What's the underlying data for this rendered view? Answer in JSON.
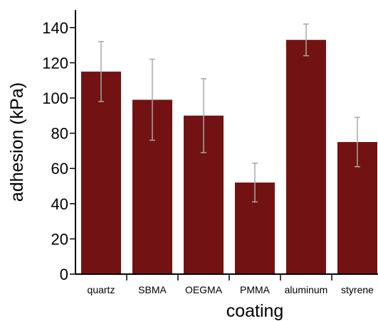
{
  "chart_data": {
    "type": "bar",
    "title": "",
    "xlabel": "coating",
    "ylabel": "adhesion (kPa)",
    "categories": [
      "quartz",
      "SBMA",
      "OEGMA",
      "PMMA",
      "aluminum",
      "styrene"
    ],
    "values": [
      115,
      99,
      90,
      52,
      133,
      75
    ],
    "error_low": [
      98,
      76,
      69,
      41,
      124,
      61
    ],
    "error_high": [
      132,
      122,
      111,
      63,
      142,
      89
    ],
    "ylim": [
      0,
      150
    ],
    "yticks": [
      0,
      20,
      40,
      60,
      80,
      100,
      120,
      140
    ],
    "grid": false,
    "colors": {
      "bar": "#731212",
      "error": "#a8a8a8",
      "axis": "#000000"
    }
  }
}
